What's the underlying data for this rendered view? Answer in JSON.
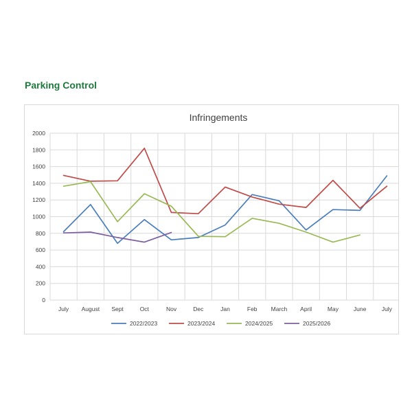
{
  "page": {
    "heading": "Parking Control"
  },
  "chart_data": {
    "type": "line",
    "title": "Infringements",
    "xlabel": "",
    "ylabel": "",
    "ylim": [
      0,
      2000
    ],
    "yticks": [
      0,
      200,
      400,
      600,
      800,
      1000,
      1200,
      1400,
      1600,
      1800,
      2000
    ],
    "grid": true,
    "legend_position": "bottom",
    "categories": [
      "July",
      "August",
      "Sept",
      "Oct",
      "Nov",
      "Dec",
      "Jan",
      "Feb",
      "March",
      "April",
      "May",
      "June",
      "July"
    ],
    "series": [
      {
        "name": "2022/2023",
        "color": "#4a7ebb",
        "values": [
          820,
          1145,
          680,
          965,
          722,
          750,
          900,
          1265,
          1190,
          840,
          1085,
          1075,
          1490
        ]
      },
      {
        "name": "2023/2024",
        "color": "#be4b48",
        "values": [
          1495,
          1425,
          1430,
          1820,
          1050,
          1035,
          1355,
          1235,
          1150,
          1110,
          1435,
          1100,
          1365
        ]
      },
      {
        "name": "2024/2025",
        "color": "#98b954",
        "values": [
          1365,
          1420,
          940,
          1275,
          1125,
          765,
          760,
          980,
          920,
          815,
          695,
          780,
          null
        ]
      },
      {
        "name": "2025/2026",
        "color": "#7d5fa0",
        "values": [
          805,
          815,
          750,
          695,
          810,
          null,
          null,
          null,
          null,
          null,
          null,
          null,
          null
        ]
      }
    ]
  }
}
